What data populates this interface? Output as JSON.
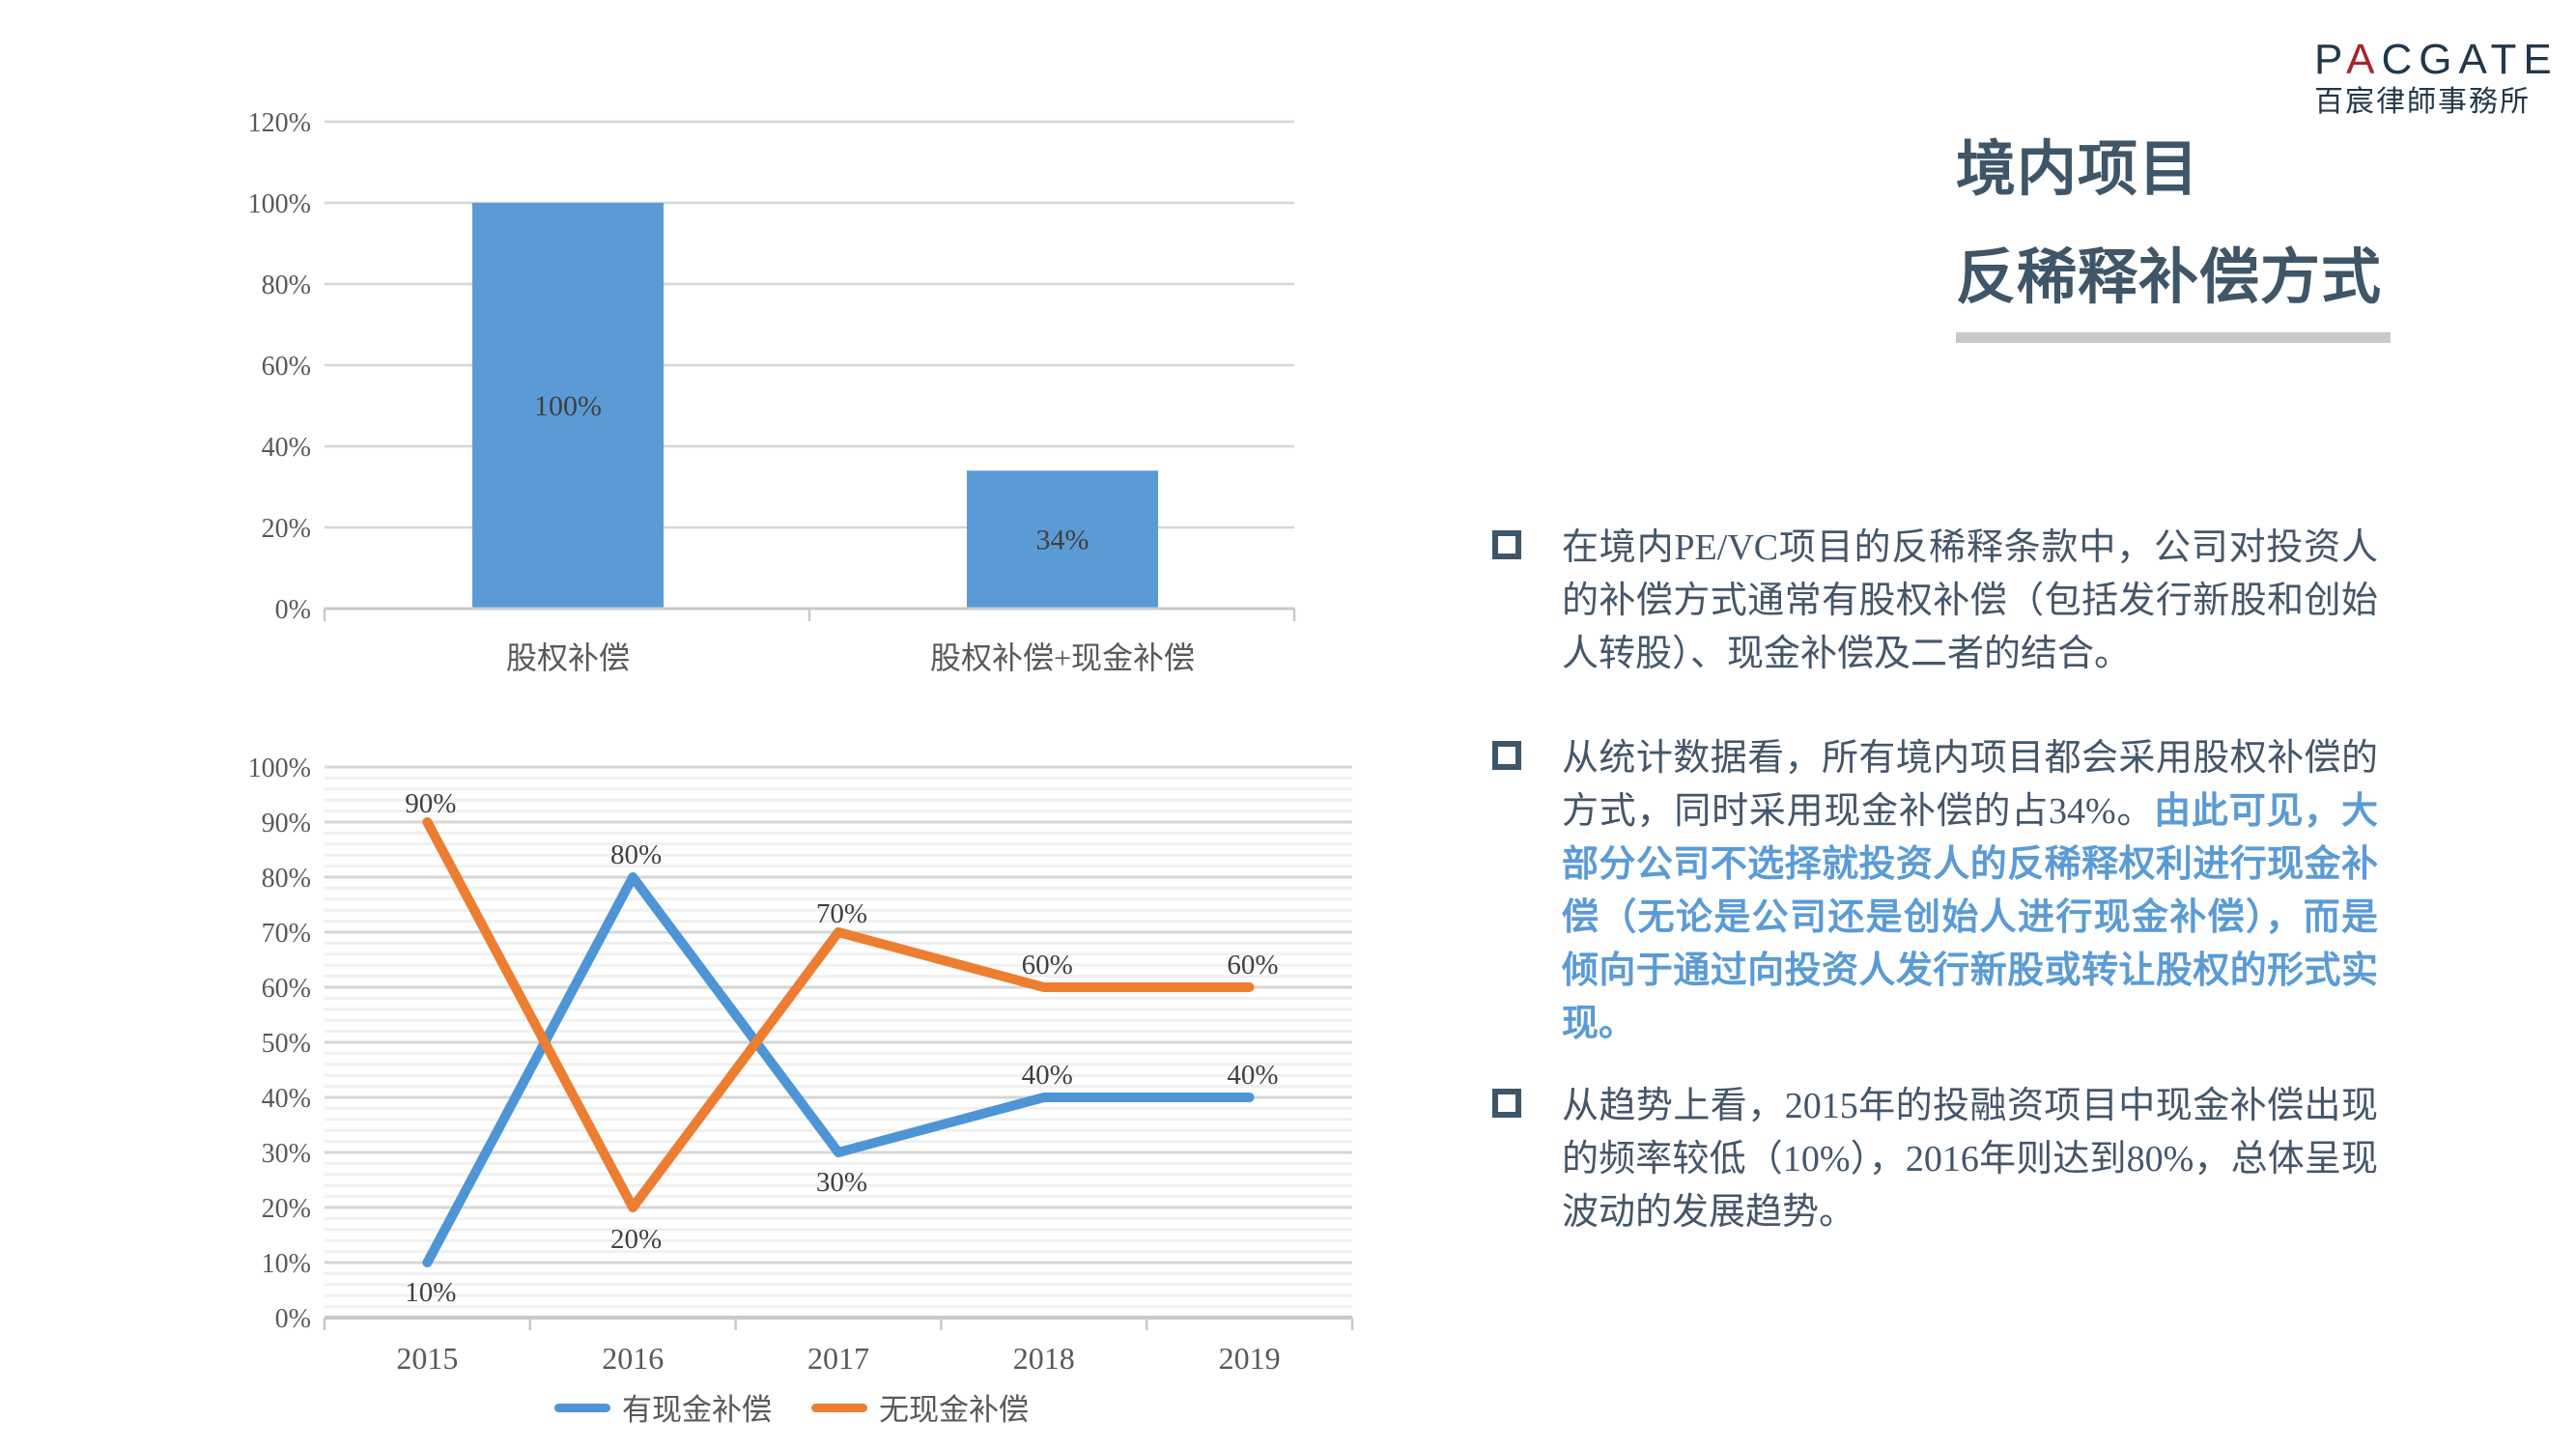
{
  "logo": {
    "brand_prefix": "P",
    "brand_accent": "A",
    "brand_suffix": "CGATE",
    "subtitle": "百宸律師事務所"
  },
  "header": {
    "title_line1": "境内项目",
    "title_line2": "反稀释补偿方式"
  },
  "bullets": [
    {
      "segments": [
        {
          "text": "在境内PE/VC项目的反稀释条款中，公司对投资人的补偿方式通常有股权补偿（包括发行新股和创始人转股）、现金补偿及二者的结合。",
          "highlight": false
        }
      ]
    },
    {
      "segments": [
        {
          "text": "从统计数据看，所有境内项目都会采用股权补偿的方式，同时采用现金补偿的占34%。",
          "highlight": false
        },
        {
          "text": "由此可见，大部分公司不选择就投资人的反稀释权利进行现金补偿（无论是公司还是创始人进行现金补偿），而是倾向于通过向投资人发行新股或转让股权的形式实现。",
          "highlight": true
        }
      ]
    },
    {
      "segments": [
        {
          "text": "从趋势上看，2015年的投融资项目中现金补偿出现的频率较低（10%），2016年则达到80%，总体呈现波动的发展趋势。",
          "highlight": false
        }
      ]
    }
  ],
  "colors": {
    "bar_blue": "#5B9BD5",
    "line_blue": "#4E95D6",
    "line_orange": "#ED7D31",
    "grid_major": "#D6D6D6",
    "grid_minor": "#F0F0F0",
    "axis_line": "#C9C9C9",
    "tick_text": "#595959",
    "data_label_text": "#404040",
    "title_text": "#3F5668",
    "body_text": "#44566A",
    "highlight_text": "#5B9BD5",
    "bullet_square": "#3F5668",
    "underline_gray": "#C9C9C9",
    "logo_navy": "#22374A",
    "logo_red": "#A2262B"
  },
  "chart_data": [
    {
      "type": "bar",
      "title": "",
      "categories": [
        "股权补偿",
        "股权补偿+现金补偿"
      ],
      "values": [
        100,
        34
      ],
      "value_labels": [
        "100%",
        "34%"
      ],
      "ylim": [
        0,
        120
      ],
      "ytick_values": [
        0,
        20,
        40,
        60,
        80,
        100,
        120
      ],
      "ytick_labels": [
        "0%",
        "20%",
        "40%",
        "60%",
        "80%",
        "100%",
        "120%"
      ],
      "grid": true,
      "legend_position": "none",
      "xlabel": "",
      "ylabel": ""
    },
    {
      "type": "line",
      "title": "",
      "categories": [
        "2015",
        "2016",
        "2017",
        "2018",
        "2019"
      ],
      "series": [
        {
          "name": "有现金补偿",
          "values": [
            10,
            80,
            30,
            40,
            40
          ],
          "labels": [
            "10%",
            "80%",
            "30%",
            "40%",
            "40%"
          ]
        },
        {
          "name": "无现金补偿",
          "values": [
            90,
            20,
            70,
            60,
            60
          ],
          "labels": [
            "90%",
            "20%",
            "70%",
            "60%",
            "60%"
          ]
        }
      ],
      "ylim": [
        0,
        100
      ],
      "ytick_step": 10,
      "ytick_labels": [
        "0%",
        "10%",
        "20%",
        "30%",
        "40%",
        "50%",
        "60%",
        "70%",
        "80%",
        "90%",
        "100%"
      ],
      "minor_grid_step": 2,
      "grid": true,
      "legend_position": "bottom",
      "xlabel": "",
      "ylabel": ""
    }
  ]
}
